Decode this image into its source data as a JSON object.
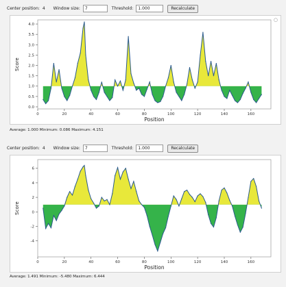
{
  "controls_top": {
    "center_label": "Center position:",
    "center_value": "4",
    "window_label": "Window size:",
    "window_value": "7",
    "threshold_label": "Threshold:",
    "threshold_value": "1.000",
    "recalculate_label": "Recalculate"
  },
  "controls_bottom": {
    "center_label": "Center position:",
    "center_value": "4",
    "window_label": "Window size:",
    "window_value": "7",
    "threshold_label": "Threshold:",
    "threshold_value": "1.000",
    "recalculate_label": "Recalculate"
  },
  "stats_top": {
    "text": "Average: 1.000   Minimum: 0.086   Maximum: 4.151"
  },
  "stats_bottom": {
    "text": "Average: 1.491   Minimum: -5.480   Maximum: 6.444"
  },
  "colors": {
    "above": "#e8e83a",
    "below": "#35b34a",
    "line": "#2a5a8c"
  },
  "chart_data": [
    {
      "type": "area",
      "xlabel": "Position",
      "ylabel": "Score",
      "xlim": [
        0,
        175
      ],
      "ylim": [
        -0.1,
        4.2
      ],
      "threshold": 1.0,
      "xticks": [
        0,
        20,
        40,
        60,
        80,
        100,
        120,
        140,
        160
      ],
      "yticks": [
        0.0,
        0.5,
        1.0,
        1.5,
        2.0,
        2.5,
        3.0,
        3.5,
        4.0
      ],
      "ytick_labels": [
        "0.0",
        "0.5",
        "1.0",
        "1.5",
        "2.0",
        "2.5",
        "3.0",
        "3.5",
        "4.0"
      ],
      "x": [
        4,
        6,
        8,
        10,
        12,
        14,
        16,
        18,
        20,
        22,
        24,
        26,
        28,
        30,
        32,
        34,
        35,
        36,
        38,
        40,
        42,
        44,
        46,
        48,
        50,
        52,
        54,
        56,
        58,
        60,
        62,
        64,
        66,
        68,
        70,
        72,
        74,
        76,
        78,
        80,
        82,
        84,
        86,
        88,
        90,
        92,
        94,
        96,
        98,
        100,
        102,
        104,
        106,
        108,
        110,
        112,
        114,
        116,
        118,
        120,
        122,
        124,
        126,
        128,
        130,
        132,
        134,
        136,
        138,
        140,
        142,
        144,
        146,
        148,
        150,
        152,
        154,
        156,
        158,
        160,
        162,
        164,
        166,
        168
      ],
      "y": [
        0.35,
        0.15,
        0.3,
        0.9,
        2.1,
        1.2,
        1.8,
        0.9,
        0.5,
        0.3,
        0.55,
        1.0,
        1.4,
        2.1,
        2.6,
        3.8,
        4.1,
        2.5,
        1.3,
        0.8,
        0.5,
        0.35,
        0.7,
        1.2,
        0.7,
        0.5,
        0.3,
        0.45,
        1.3,
        1.0,
        1.25,
        0.8,
        1.3,
        3.4,
        1.6,
        1.15,
        0.8,
        0.9,
        0.6,
        0.5,
        0.85,
        1.2,
        0.6,
        0.3,
        0.2,
        0.25,
        0.5,
        1.0,
        1.4,
        2.0,
        1.2,
        0.7,
        0.5,
        0.3,
        0.6,
        1.1,
        1.9,
        1.3,
        0.9,
        1.2,
        2.5,
        3.6,
        2.2,
        1.5,
        2.2,
        1.5,
        2.1,
        1.3,
        0.8,
        0.5,
        0.4,
        0.8,
        0.55,
        0.3,
        0.2,
        0.35,
        0.65,
        0.9,
        1.2,
        0.7,
        0.35,
        0.2,
        0.4,
        0.6
      ]
    },
    {
      "type": "area",
      "xlabel": "Position",
      "ylabel": "Score",
      "xlim": [
        0,
        175
      ],
      "ylim": [
        -6.2,
        7.2
      ],
      "threshold": 1.0,
      "xticks": [
        0,
        20,
        40,
        60,
        80,
        100,
        120,
        140,
        160
      ],
      "yticks": [
        -4,
        -2,
        0,
        2,
        4,
        6
      ],
      "ytick_labels": [
        "-4",
        "-2",
        "0",
        "2",
        "4",
        "6"
      ],
      "x": [
        4,
        6,
        8,
        10,
        12,
        14,
        16,
        18,
        20,
        22,
        24,
        26,
        28,
        30,
        32,
        34,
        35,
        36,
        38,
        40,
        42,
        44,
        46,
        48,
        50,
        52,
        54,
        56,
        58,
        60,
        62,
        64,
        66,
        68,
        70,
        72,
        74,
        76,
        78,
        80,
        82,
        84,
        86,
        88,
        90,
        92,
        94,
        96,
        98,
        100,
        102,
        104,
        106,
        108,
        110,
        112,
        114,
        116,
        118,
        120,
        122,
        124,
        126,
        128,
        130,
        132,
        134,
        136,
        138,
        140,
        142,
        144,
        146,
        148,
        150,
        152,
        154,
        156,
        158,
        160,
        162,
        164,
        166,
        168
      ],
      "y": [
        0.5,
        -2.3,
        -1.6,
        -2.2,
        -0.5,
        -1.2,
        -0.3,
        0.2,
        0.8,
        2.0,
        2.8,
        2.3,
        3.5,
        4.5,
        5.6,
        6.2,
        6.4,
        5.0,
        3.0,
        1.8,
        1.2,
        0.5,
        0.8,
        2.0,
        1.5,
        1.7,
        1.0,
        2.5,
        5.0,
        6.1,
        4.5,
        5.5,
        6.0,
        4.5,
        3.2,
        4.2,
        2.8,
        1.5,
        1.0,
        0.6,
        -0.5,
        -2.0,
        -3.2,
        -4.5,
        -5.4,
        -4.2,
        -3.0,
        -2.2,
        -0.6,
        0.8,
        2.2,
        1.7,
        0.8,
        1.8,
        2.8,
        3.0,
        2.4,
        2.0,
        1.4,
        2.2,
        2.5,
        2.1,
        1.3,
        -0.4,
        -1.6,
        -2.1,
        -0.8,
        1.5,
        3.0,
        3.3,
        2.6,
        1.6,
        0.8,
        -0.6,
        -1.8,
        -2.8,
        -2.1,
        -0.2,
        2.0,
        4.2,
        4.6,
        3.5,
        1.5,
        0.5
      ]
    }
  ]
}
